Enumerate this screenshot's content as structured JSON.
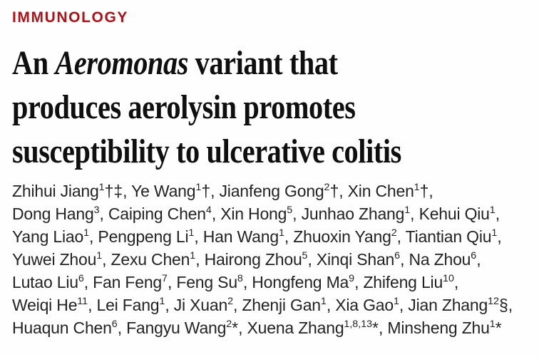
{
  "kicker": "IMMUNOLOGY",
  "accent_color": "#ae1117",
  "title": {
    "line1_pre": "An ",
    "line1_italic": "Aeromonas",
    "line1_post": " variant that",
    "line2": "produces aerolysin promotes",
    "line3": "susceptibility to ulcerative colitis"
  },
  "authors": {
    "lines": [
      [
        {
          "name": "Zhihui Jiang",
          "sup": "1",
          "sym": "†‡",
          "sep": ", "
        },
        {
          "name": "Ye Wang",
          "sup": "1",
          "sym": "†",
          "sep": ", "
        },
        {
          "name": "Jianfeng Gong",
          "sup": "2",
          "sym": "†",
          "sep": ", "
        },
        {
          "name": "Xin Chen",
          "sup": "1",
          "sym": "†",
          "sep": ","
        }
      ],
      [
        {
          "name": "Dong Hang",
          "sup": "3",
          "sym": "",
          "sep": ", "
        },
        {
          "name": "Caiping Chen",
          "sup": "4",
          "sym": "",
          "sep": ", "
        },
        {
          "name": "Xin Hong",
          "sup": "5",
          "sym": "",
          "sep": ", "
        },
        {
          "name": "Junhao Zhang",
          "sup": "1",
          "sym": "",
          "sep": ", "
        },
        {
          "name": "Kehui Qiu",
          "sup": "1",
          "sym": "",
          "sep": ","
        }
      ],
      [
        {
          "name": "Yang Liao",
          "sup": "1",
          "sym": "",
          "sep": ", "
        },
        {
          "name": "Pengpeng Li",
          "sup": "1",
          "sym": "",
          "sep": ", "
        },
        {
          "name": "Han Wang",
          "sup": "1",
          "sym": "",
          "sep": ", "
        },
        {
          "name": "Zhuoxin Yang",
          "sup": "2",
          "sym": "",
          "sep": ", "
        },
        {
          "name": "Tiantian Qiu",
          "sup": "1",
          "sym": "",
          "sep": ","
        }
      ],
      [
        {
          "name": "Yuwei Zhou",
          "sup": "1",
          "sym": "",
          "sep": ", "
        },
        {
          "name": "Zexu Chen",
          "sup": "1",
          "sym": "",
          "sep": ", "
        },
        {
          "name": "Hairong Zhou",
          "sup": "5",
          "sym": "",
          "sep": ", "
        },
        {
          "name": "Xinqi Shan",
          "sup": "6",
          "sym": "",
          "sep": ", "
        },
        {
          "name": "Na Zhou",
          "sup": "6",
          "sym": "",
          "sep": ","
        }
      ],
      [
        {
          "name": "Lutao Liu",
          "sup": "6",
          "sym": "",
          "sep": ", "
        },
        {
          "name": "Fan Feng",
          "sup": "7",
          "sym": "",
          "sep": ", "
        },
        {
          "name": "Feng Su",
          "sup": "8",
          "sym": "",
          "sep": ", "
        },
        {
          "name": "Hongfeng Ma",
          "sup": "9",
          "sym": "",
          "sep": ", "
        },
        {
          "name": "Zhifeng Liu",
          "sup": "10",
          "sym": "",
          "sep": ","
        }
      ],
      [
        {
          "name": "Weiqi He",
          "sup": "11",
          "sym": "",
          "sep": ", "
        },
        {
          "name": "Lei Fang",
          "sup": "1",
          "sym": "",
          "sep": ", "
        },
        {
          "name": "Ji Xuan",
          "sup": "2",
          "sym": "",
          "sep": ", "
        },
        {
          "name": "Zhenji Gan",
          "sup": "1",
          "sym": "",
          "sep": ", "
        },
        {
          "name": "Xia Gao",
          "sup": "1",
          "sym": "",
          "sep": ", "
        },
        {
          "name": "Jian Zhang",
          "sup": "12",
          "sym": "§",
          "sep": ","
        }
      ],
      [
        {
          "name": "Huaqun Chen",
          "sup": "6",
          "sym": "",
          "sep": ", "
        },
        {
          "name": "Fangyu Wang",
          "sup": "2",
          "sym": "*",
          "sep": ", "
        },
        {
          "name": "Xuena Zhang",
          "sup": "1,8,13",
          "sym": "*",
          "sep": ", "
        },
        {
          "name": "Minsheng Zhu",
          "sup": "1",
          "sym": "*",
          "sep": ""
        }
      ]
    ]
  }
}
